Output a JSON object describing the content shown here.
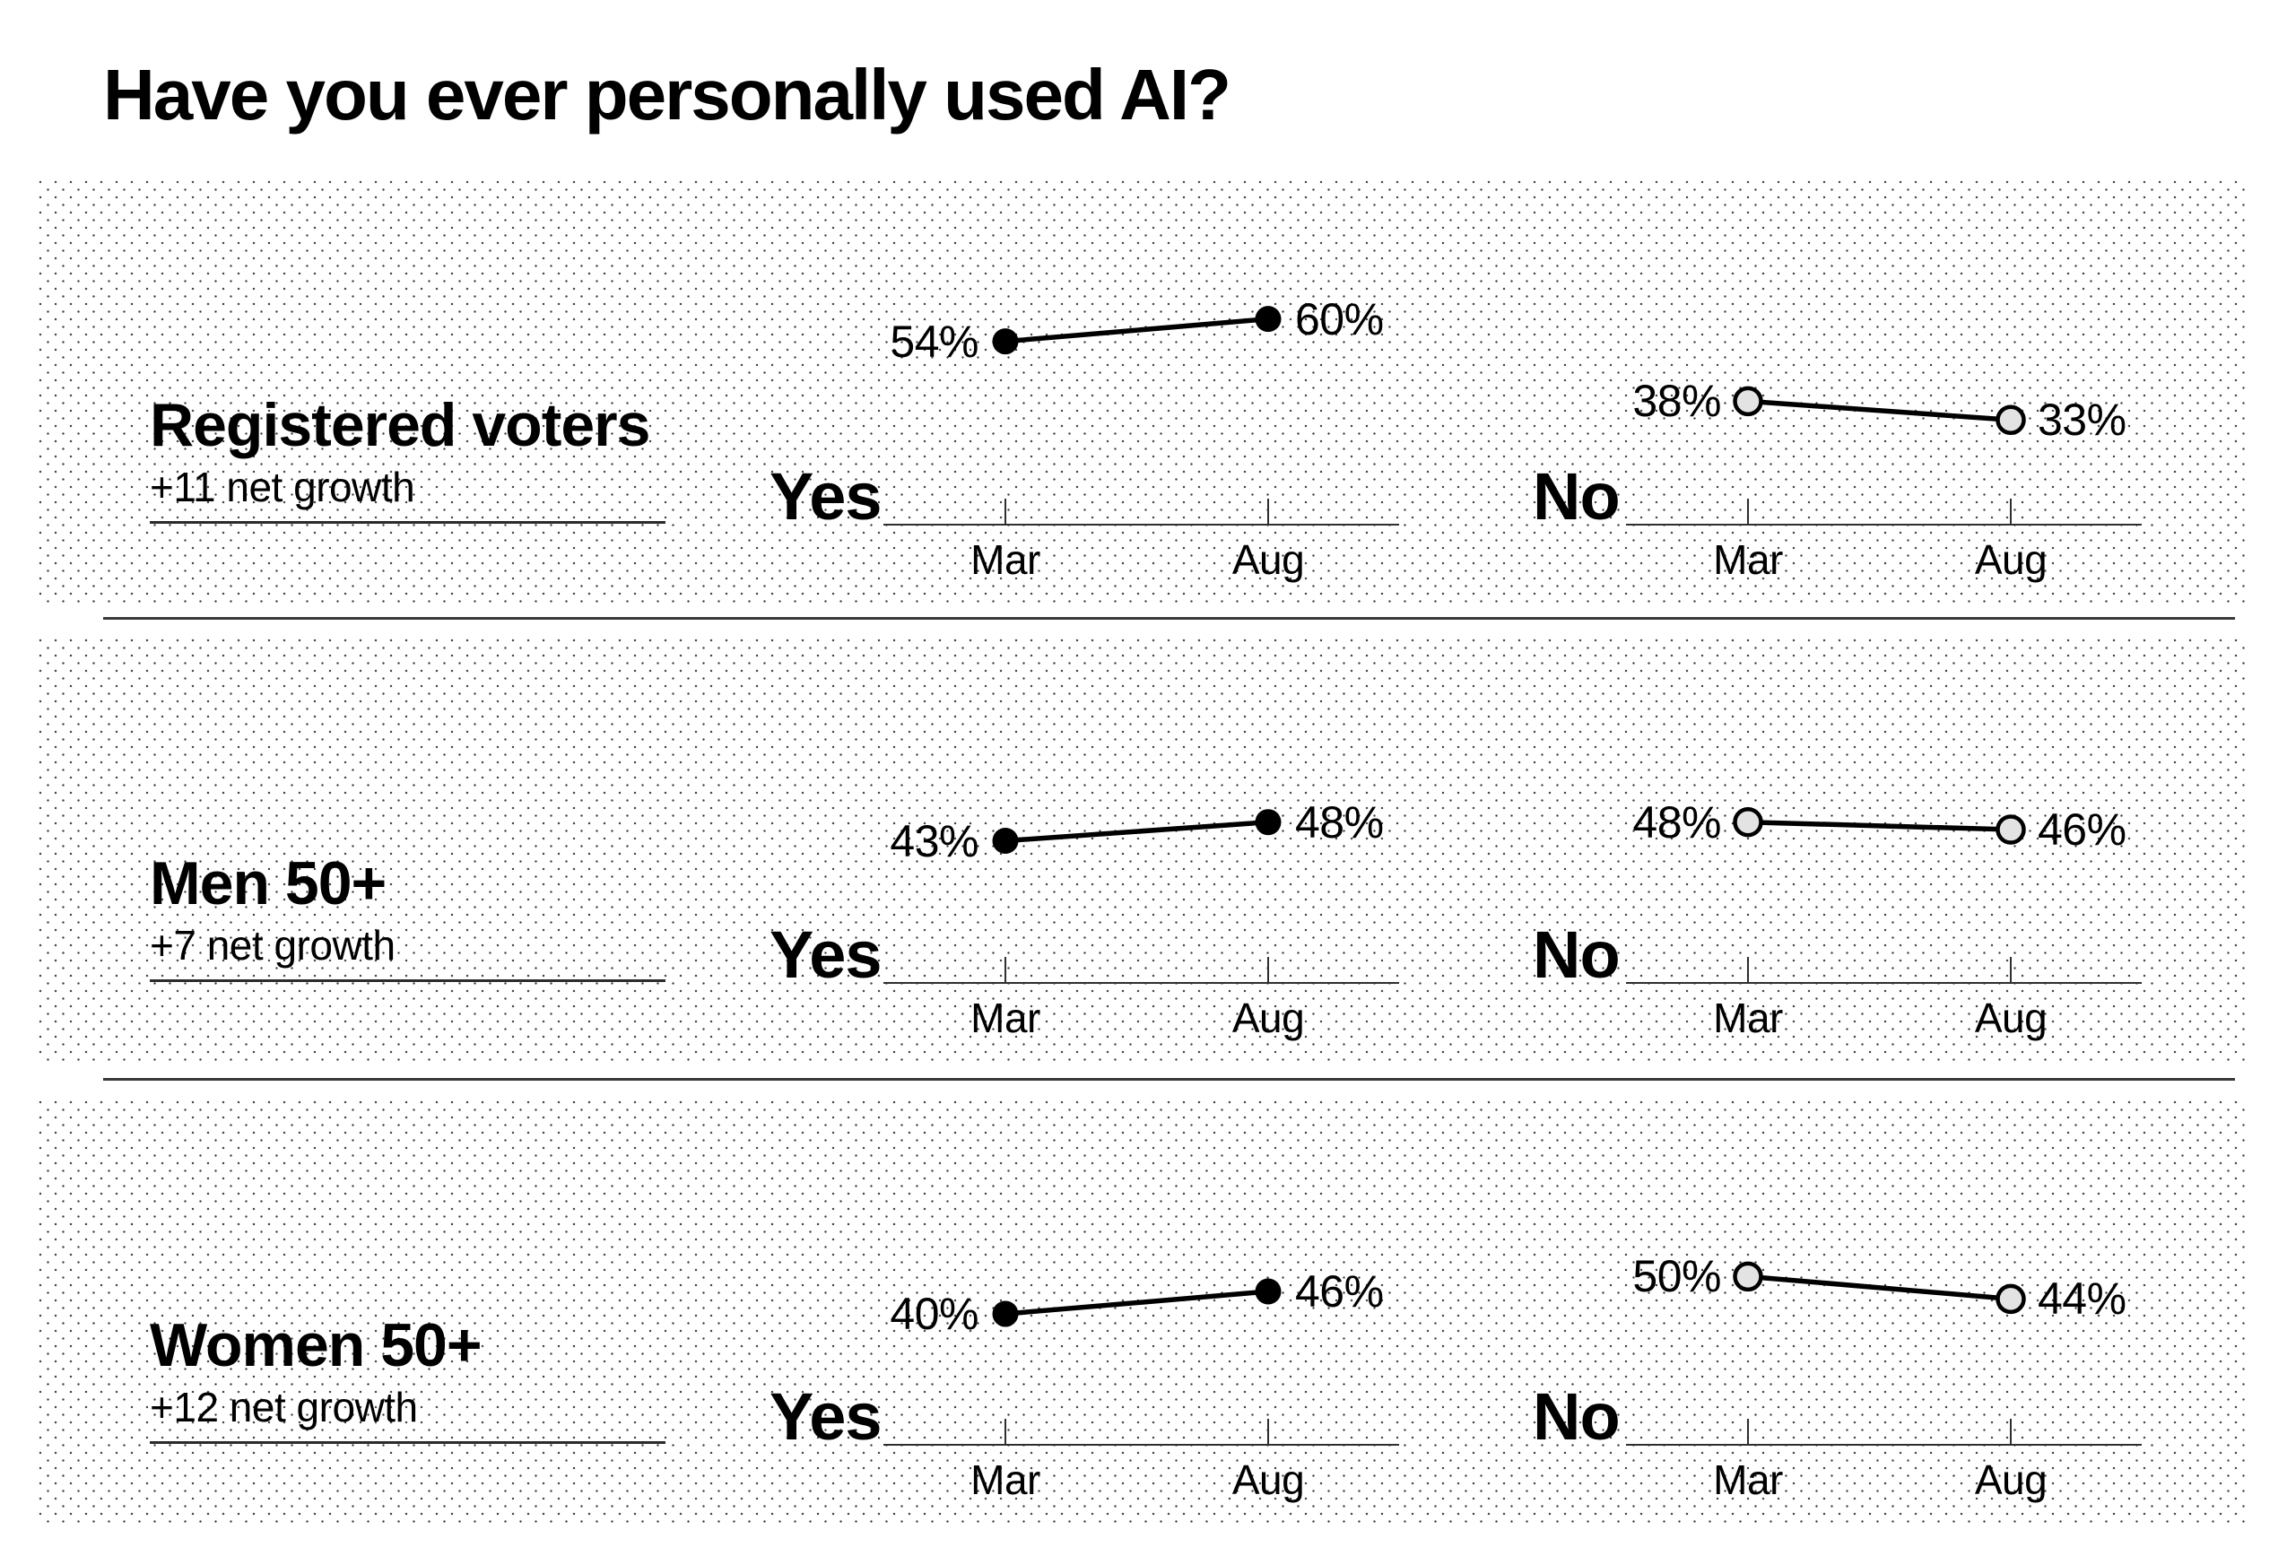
{
  "title": "Have you ever personally used AI?",
  "colors": {
    "text": "#000000",
    "filled_dot": "#000000",
    "open_dot_fill": "#e3e3e3",
    "open_dot_stroke": "#000000",
    "line": "#000000",
    "axis": "#2e2e2e",
    "divider": "#383838"
  },
  "chart_data": {
    "type": "line",
    "title": "Have you ever personally used AI?",
    "x": [
      "Mar",
      "Aug"
    ],
    "panels_per_group": [
      "Yes",
      "No"
    ],
    "y_unit": "%",
    "grid": "off",
    "groups": [
      {
        "name": "Registered voters",
        "net_growth_label": "+11 net growth",
        "series": [
          {
            "name": "Yes",
            "style": "filled",
            "values": [
              54,
              60
            ],
            "point_labels": [
              "54%",
              "60%"
            ]
          },
          {
            "name": "No",
            "style": "open",
            "values": [
              38,
              33
            ],
            "point_labels": [
              "38%",
              "33%"
            ]
          }
        ]
      },
      {
        "name": "Men 50+",
        "net_growth_label": "+7 net growth",
        "series": [
          {
            "name": "Yes",
            "style": "filled",
            "values": [
              43,
              48
            ],
            "point_labels": [
              "43%",
              "48%"
            ]
          },
          {
            "name": "No",
            "style": "open",
            "values": [
              48,
              46
            ],
            "point_labels": [
              "48%",
              "46%"
            ]
          }
        ]
      },
      {
        "name": "Women 50+",
        "net_growth_label": "+12 net growth",
        "series": [
          {
            "name": "Yes",
            "style": "filled",
            "values": [
              40,
              46
            ],
            "point_labels": [
              "40%",
              "46%"
            ]
          },
          {
            "name": "No",
            "style": "open",
            "values": [
              50,
              44
            ],
            "point_labels": [
              "50%",
              "44%"
            ]
          }
        ]
      }
    ]
  }
}
